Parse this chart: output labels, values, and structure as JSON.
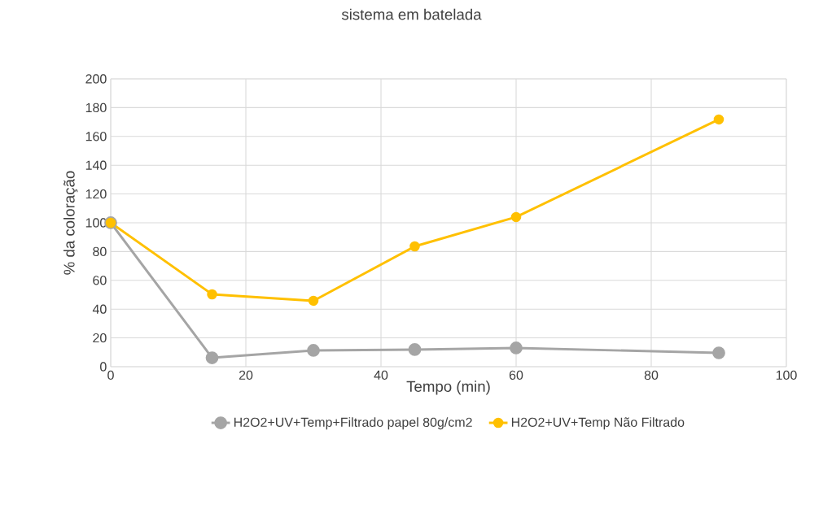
{
  "chart_data": {
    "type": "line",
    "title": "sistema em batelada",
    "xlabel": "Tempo (min)",
    "ylabel": "% da coloração",
    "x": [
      0,
      15,
      30,
      45,
      60,
      90
    ],
    "series": [
      {
        "name": "H2O2+UV+Temp+Filtrado papel 80g/cm2",
        "color": "#a5a5a5",
        "values": [
          100,
          6.2,
          11.3,
          11.9,
          13,
          9.6
        ]
      },
      {
        "name": "H2O2+UV+Temp Não Filtrado",
        "color": "#ffc000",
        "values": [
          100,
          50.3,
          45.8,
          83.6,
          104,
          171.8
        ]
      }
    ],
    "xlim": [
      0,
      100
    ],
    "xticks": [
      0,
      20,
      40,
      60,
      80,
      100
    ],
    "ylim": [
      0,
      200
    ],
    "yticks": [
      0,
      20,
      40,
      60,
      80,
      100,
      120,
      140,
      160,
      180,
      200
    ],
    "grid": true,
    "legend": "bottom",
    "marker": "circle",
    "line_style": "solid"
  }
}
